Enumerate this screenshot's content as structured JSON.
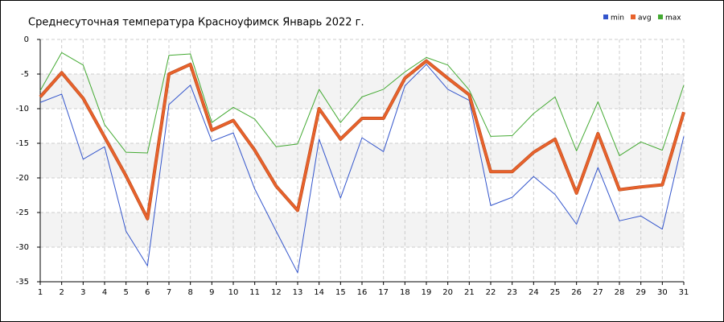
{
  "chart_data": {
    "type": "line",
    "title": "Среднесуточная температура Красноуфимск  Январь 2022 г.",
    "categories": [
      "1",
      "2",
      "3",
      "4",
      "5",
      "6",
      "7",
      "8",
      "9",
      "10",
      "11",
      "12",
      "13",
      "14",
      "15",
      "16",
      "17",
      "18",
      "19",
      "20",
      "21",
      "22",
      "23",
      "24",
      "25",
      "26",
      "27",
      "28",
      "29",
      "30",
      "31"
    ],
    "series": [
      {
        "name": "min",
        "color": "#3355cc",
        "values": [
          -9.1,
          -7.9,
          -17.3,
          -15.5,
          -27.7,
          -32.7,
          -9.4,
          -6.6,
          -14.7,
          -13.5,
          -21.6,
          -27.7,
          -33.7,
          -14.4,
          -22.9,
          -14.2,
          -16.2,
          -6.7,
          -3.6,
          -7.2,
          -8.8,
          -24.0,
          -22.8,
          -19.8,
          -22.4,
          -26.7,
          -18.5,
          -26.2,
          -25.5,
          -27.4,
          -14.0
        ]
      },
      {
        "name": "avg",
        "color": "#e8622c",
        "values": [
          -8.3,
          -4.8,
          -8.5,
          -14.1,
          -19.7,
          -25.9,
          -5.0,
          -3.6,
          -13.1,
          -11.7,
          -16.0,
          -21.2,
          -24.7,
          -10.0,
          -14.4,
          -11.4,
          -11.4,
          -5.6,
          -3.1,
          -5.6,
          -8.0,
          -19.1,
          -19.1,
          -16.3,
          -14.4,
          -22.2,
          -13.6,
          -21.7,
          -21.3,
          -21.0,
          -10.5
        ]
      },
      {
        "name": "max",
        "color": "#44aa33",
        "values": [
          -7.4,
          -1.9,
          -3.7,
          -12.3,
          -16.3,
          -16.4,
          -2.3,
          -2.1,
          -12.0,
          -9.8,
          -11.5,
          -15.5,
          -15.1,
          -7.2,
          -12.0,
          -8.3,
          -7.2,
          -4.7,
          -2.6,
          -3.7,
          -7.3,
          -14.0,
          -13.9,
          -10.7,
          -8.3,
          -16.1,
          -9.0,
          -16.8,
          -14.8,
          -16.0,
          -6.6
        ]
      }
    ],
    "ylim": [
      -35,
      0
    ],
    "yticks": [
      0,
      -5,
      -10,
      -15,
      -20,
      -25,
      -30,
      -35
    ],
    "grid": true,
    "legend": "top-right"
  }
}
